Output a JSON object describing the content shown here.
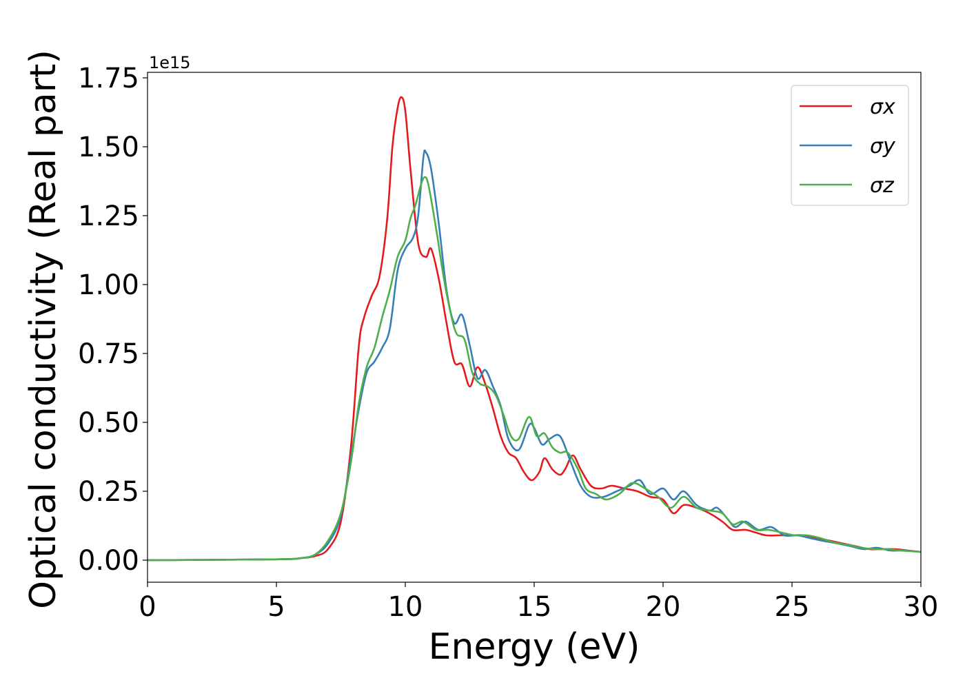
{
  "chart_data": {
    "type": "line",
    "title": "",
    "xlabel": "Energy (eV)",
    "ylabel": "Optical conductivity (Real part)",
    "y_offset_label": "1e15",
    "xlim": [
      0,
      30
    ],
    "ylim": [
      -0.08,
      1.77
    ],
    "x_ticks": [
      0,
      5,
      10,
      15,
      20,
      25,
      30
    ],
    "y_ticks": [
      0.0,
      0.25,
      0.5,
      0.75,
      1.0,
      1.25,
      1.5,
      1.75
    ],
    "x_tick_labels": [
      "0",
      "5",
      "10",
      "15",
      "20",
      "25",
      "30"
    ],
    "y_tick_labels": [
      "0.00",
      "0.25",
      "0.50",
      "0.75",
      "1.00",
      "1.25",
      "1.50",
      "1.75"
    ],
    "grid": false,
    "legend_position": "top-right",
    "series": [
      {
        "name": "σx",
        "color": "#e41a1c",
        "points": [
          [
            0,
            0
          ],
          [
            5,
            0.003
          ],
          [
            6,
            0.008
          ],
          [
            6.5,
            0.015
          ],
          [
            7,
            0.04
          ],
          [
            7.5,
            0.14
          ],
          [
            7.9,
            0.42
          ],
          [
            8.2,
            0.78
          ],
          [
            8.4,
            0.88
          ],
          [
            8.7,
            0.96
          ],
          [
            9.0,
            1.03
          ],
          [
            9.3,
            1.24
          ],
          [
            9.5,
            1.5
          ],
          [
            9.7,
            1.64
          ],
          [
            9.85,
            1.68
          ],
          [
            10.0,
            1.63
          ],
          [
            10.2,
            1.42
          ],
          [
            10.5,
            1.15
          ],
          [
            10.8,
            1.1
          ],
          [
            11.0,
            1.13
          ],
          [
            11.3,
            1.02
          ],
          [
            11.6,
            0.86
          ],
          [
            11.9,
            0.72
          ],
          [
            12.2,
            0.71
          ],
          [
            12.5,
            0.63
          ],
          [
            12.8,
            0.7
          ],
          [
            13.1,
            0.64
          ],
          [
            13.4,
            0.55
          ],
          [
            13.7,
            0.45
          ],
          [
            14.0,
            0.39
          ],
          [
            14.3,
            0.37
          ],
          [
            14.6,
            0.32
          ],
          [
            14.9,
            0.29
          ],
          [
            15.2,
            0.32
          ],
          [
            15.4,
            0.37
          ],
          [
            15.7,
            0.33
          ],
          [
            16.0,
            0.31
          ],
          [
            16.2,
            0.33
          ],
          [
            16.5,
            0.38
          ],
          [
            16.8,
            0.33
          ],
          [
            17.2,
            0.27
          ],
          [
            17.6,
            0.26
          ],
          [
            18.0,
            0.27
          ],
          [
            18.5,
            0.26
          ],
          [
            19.0,
            0.25
          ],
          [
            19.5,
            0.23
          ],
          [
            20.0,
            0.22
          ],
          [
            20.4,
            0.17
          ],
          [
            20.8,
            0.2
          ],
          [
            21.3,
            0.19
          ],
          [
            21.8,
            0.17
          ],
          [
            22.3,
            0.14
          ],
          [
            22.7,
            0.11
          ],
          [
            23.2,
            0.11
          ],
          [
            23.6,
            0.1
          ],
          [
            24.0,
            0.09
          ],
          [
            24.5,
            0.09
          ],
          [
            25.0,
            0.09
          ],
          [
            25.5,
            0.09
          ],
          [
            26.0,
            0.08
          ],
          [
            26.5,
            0.07
          ],
          [
            27.0,
            0.06
          ],
          [
            27.5,
            0.05
          ],
          [
            28.0,
            0.04
          ],
          [
            28.5,
            0.04
          ],
          [
            29.0,
            0.04
          ],
          [
            29.5,
            0.035
          ],
          [
            30,
            0.03
          ]
        ]
      },
      {
        "name": "σy",
        "color": "#377eb8",
        "points": [
          [
            0,
            0
          ],
          [
            5,
            0.003
          ],
          [
            6,
            0.008
          ],
          [
            6.5,
            0.02
          ],
          [
            7,
            0.06
          ],
          [
            7.5,
            0.16
          ],
          [
            7.9,
            0.38
          ],
          [
            8.2,
            0.55
          ],
          [
            8.5,
            0.68
          ],
          [
            8.8,
            0.72
          ],
          [
            9.1,
            0.77
          ],
          [
            9.4,
            0.84
          ],
          [
            9.7,
            1.05
          ],
          [
            10.0,
            1.13
          ],
          [
            10.3,
            1.17
          ],
          [
            10.5,
            1.25
          ],
          [
            10.7,
            1.46
          ],
          [
            10.8,
            1.48
          ],
          [
            11.0,
            1.42
          ],
          [
            11.3,
            1.22
          ],
          [
            11.6,
            0.98
          ],
          [
            11.9,
            0.86
          ],
          [
            12.2,
            0.89
          ],
          [
            12.5,
            0.78
          ],
          [
            12.8,
            0.66
          ],
          [
            13.1,
            0.69
          ],
          [
            13.4,
            0.63
          ],
          [
            13.7,
            0.56
          ],
          [
            14.0,
            0.44
          ],
          [
            14.4,
            0.4
          ],
          [
            14.8,
            0.49
          ],
          [
            15.0,
            0.48
          ],
          [
            15.3,
            0.42
          ],
          [
            15.6,
            0.44
          ],
          [
            16.0,
            0.45
          ],
          [
            16.4,
            0.36
          ],
          [
            16.8,
            0.27
          ],
          [
            17.2,
            0.23
          ],
          [
            17.7,
            0.23
          ],
          [
            18.2,
            0.25
          ],
          [
            18.7,
            0.27
          ],
          [
            19.1,
            0.29
          ],
          [
            19.5,
            0.24
          ],
          [
            20.0,
            0.26
          ],
          [
            20.4,
            0.22
          ],
          [
            20.8,
            0.25
          ],
          [
            21.3,
            0.2
          ],
          [
            21.8,
            0.18
          ],
          [
            22.1,
            0.19
          ],
          [
            22.5,
            0.15
          ],
          [
            22.8,
            0.12
          ],
          [
            23.2,
            0.14
          ],
          [
            23.7,
            0.11
          ],
          [
            24.2,
            0.12
          ],
          [
            24.7,
            0.09
          ],
          [
            25.2,
            0.09
          ],
          [
            25.7,
            0.08
          ],
          [
            26.2,
            0.07
          ],
          [
            26.8,
            0.06
          ],
          [
            27.3,
            0.05
          ],
          [
            27.8,
            0.04
          ],
          [
            28.3,
            0.045
          ],
          [
            28.8,
            0.035
          ],
          [
            29.3,
            0.035
          ],
          [
            30,
            0.03
          ]
        ]
      },
      {
        "name": "σz",
        "color": "#4daf4a",
        "points": [
          [
            0,
            0
          ],
          [
            5,
            0.003
          ],
          [
            6,
            0.008
          ],
          [
            6.5,
            0.02
          ],
          [
            7,
            0.07
          ],
          [
            7.5,
            0.17
          ],
          [
            7.9,
            0.36
          ],
          [
            8.2,
            0.57
          ],
          [
            8.5,
            0.7
          ],
          [
            8.8,
            0.77
          ],
          [
            9.1,
            0.88
          ],
          [
            9.4,
            0.98
          ],
          [
            9.7,
            1.1
          ],
          [
            10.0,
            1.16
          ],
          [
            10.2,
            1.24
          ],
          [
            10.4,
            1.29
          ],
          [
            10.6,
            1.36
          ],
          [
            10.75,
            1.39
          ],
          [
            10.9,
            1.36
          ],
          [
            11.2,
            1.2
          ],
          [
            11.5,
            1.02
          ],
          [
            11.8,
            0.88
          ],
          [
            12.0,
            0.82
          ],
          [
            12.3,
            0.8
          ],
          [
            12.6,
            0.68
          ],
          [
            12.9,
            0.64
          ],
          [
            13.2,
            0.63
          ],
          [
            13.5,
            0.6
          ],
          [
            13.8,
            0.53
          ],
          [
            14.1,
            0.45
          ],
          [
            14.4,
            0.44
          ],
          [
            14.8,
            0.52
          ],
          [
            15.1,
            0.45
          ],
          [
            15.4,
            0.46
          ],
          [
            15.7,
            0.41
          ],
          [
            16.0,
            0.39
          ],
          [
            16.3,
            0.39
          ],
          [
            16.7,
            0.33
          ],
          [
            17.0,
            0.26
          ],
          [
            17.4,
            0.24
          ],
          [
            17.8,
            0.22
          ],
          [
            18.3,
            0.24
          ],
          [
            18.8,
            0.28
          ],
          [
            19.3,
            0.26
          ],
          [
            19.8,
            0.23
          ],
          [
            20.3,
            0.19
          ],
          [
            20.8,
            0.23
          ],
          [
            21.3,
            0.19
          ],
          [
            21.8,
            0.18
          ],
          [
            22.3,
            0.17
          ],
          [
            22.7,
            0.13
          ],
          [
            23.1,
            0.14
          ],
          [
            23.6,
            0.11
          ],
          [
            24.1,
            0.11
          ],
          [
            24.6,
            0.1
          ],
          [
            25.1,
            0.09
          ],
          [
            25.6,
            0.09
          ],
          [
            26.1,
            0.08
          ],
          [
            26.6,
            0.065
          ],
          [
            27.2,
            0.055
          ],
          [
            27.7,
            0.045
          ],
          [
            28.2,
            0.04
          ],
          [
            28.7,
            0.04
          ],
          [
            29.2,
            0.035
          ],
          [
            30,
            0.03
          ]
        ]
      }
    ]
  }
}
